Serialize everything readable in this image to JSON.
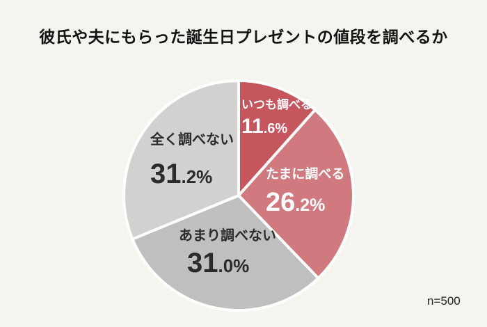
{
  "page": {
    "background": "#f5f4ef",
    "title": "彼氏や夫にもらった誕生日プレゼントの値段を調べるか",
    "sample_note": "n=500"
  },
  "chart_data": {
    "type": "pie",
    "title": "彼氏や夫にもらった誕生日プレゼントの値段を調べるか",
    "start_angle_deg": -90,
    "direction": "clockwise",
    "unit": "%",
    "separator_color": "#ffffff",
    "annotation": "n=500",
    "slices": [
      {
        "label": "いつも調べる",
        "value": 11.6,
        "color": "#c5565e",
        "text_color": "#ffffff"
      },
      {
        "label": "たまに調べる",
        "value": 26.2,
        "color": "#d07a80",
        "text_color": "#ffffff"
      },
      {
        "label": "あまり調べない",
        "value": 31.0,
        "color": "#bfbfbf",
        "text_color": "#2b2b2b"
      },
      {
        "label": "全く調べない",
        "value": 31.2,
        "color": "#d1d1d0",
        "text_color": "#2b2b2b"
      }
    ]
  }
}
